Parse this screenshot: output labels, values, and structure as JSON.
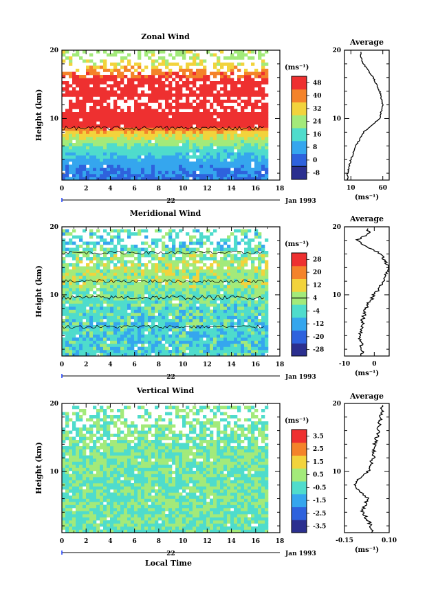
{
  "figure": {
    "xlabel_bottom": "Local Time",
    "date_label": "Jan 1993",
    "day_label": "22",
    "avg_xlabel": "(ms⁻¹)"
  },
  "chart_data": [
    {
      "type": "heatmap",
      "title": "Zonal Wind",
      "xlabel": "",
      "ylabel": "Height (km)",
      "xlim": [
        0,
        18
      ],
      "ylim": [
        1,
        20
      ],
      "xticks": [
        "0",
        "2",
        "4",
        "6",
        "8",
        "10",
        "12",
        "14",
        "16",
        "18"
      ],
      "yticks": [
        {
          "value": 10,
          "label": "10"
        },
        {
          "value": 20,
          "label": "20"
        }
      ],
      "date_label": "Jan 1993",
      "day_label": "22",
      "colorbar": {
        "unit": "(ms⁻¹)",
        "levels": [
          -8,
          0,
          8,
          16,
          24,
          32,
          40,
          48
        ],
        "tick_labels": [
          "48",
          "40",
          "32",
          "24",
          "16",
          "8",
          "0",
          "-8"
        ],
        "zero_contour": true
      },
      "approx_profile": {
        "heights_km": [
          2,
          4,
          6,
          8,
          10,
          12,
          14,
          16,
          18,
          19
        ],
        "values_ms": [
          5,
          10,
          18,
          30,
          55,
          60,
          55,
          45,
          30,
          25
        ]
      },
      "average": {
        "title": "Average",
        "xlim": [
          0,
          70
        ],
        "xticks": [
          "10",
          "60"
        ],
        "xlabel": "(ms⁻¹)"
      }
    },
    {
      "type": "heatmap",
      "title": "Meridional Wind",
      "xlabel": "",
      "ylabel": "Height (km)",
      "xlim": [
        0,
        18
      ],
      "ylim": [
        1,
        20
      ],
      "xticks": [
        "0",
        "2",
        "4",
        "6",
        "8",
        "10",
        "12",
        "14",
        "16",
        "18"
      ],
      "yticks": [
        {
          "value": 10,
          "label": "10"
        },
        {
          "value": 20,
          "label": "20"
        }
      ],
      "date_label": "Jan 1993",
      "day_label": "22",
      "colorbar": {
        "unit": "(ms⁻¹)",
        "levels": [
          -28,
          -20,
          -12,
          -4,
          4,
          12,
          20,
          28
        ],
        "tick_labels": [
          "28",
          "20",
          "12",
          "4",
          "-4",
          "-12",
          "-20",
          "-28"
        ],
        "zero_contour": true
      },
      "approx_profile": {
        "heights_km": [
          2,
          4,
          6,
          8,
          10,
          12,
          14,
          16,
          18,
          19
        ],
        "values_ms": [
          -4,
          -5,
          -4,
          -3,
          0,
          3,
          5,
          2,
          -6,
          -2
        ]
      },
      "average": {
        "title": "Average",
        "xlim": [
          -10,
          5
        ],
        "xticks": [
          "-10",
          "0"
        ],
        "xlabel": "(ms⁻¹)"
      }
    },
    {
      "type": "heatmap",
      "title": "Vertical Wind",
      "xlabel": "Local Time",
      "ylabel": "Height (km)",
      "xlim": [
        0,
        18
      ],
      "ylim": [
        1,
        20
      ],
      "xticks": [
        "0",
        "2",
        "4",
        "6",
        "8",
        "10",
        "12",
        "14",
        "16",
        "18"
      ],
      "yticks": [
        {
          "value": 10,
          "label": "10"
        },
        {
          "value": 20,
          "label": "20"
        }
      ],
      "date_label": "Jan 1993",
      "day_label": "22",
      "colorbar": {
        "unit": "(ms⁻¹)",
        "levels": [
          -3.5,
          -2.5,
          -1.5,
          -0.5,
          0.5,
          1.5,
          2.5,
          3.5
        ],
        "tick_labels": [
          "3.5",
          "2.5",
          "1.5",
          "0.5",
          "-0.5",
          "-1.5",
          "-2.5",
          "-3.5"
        ],
        "zero_contour": false
      },
      "approx_profile": {
        "heights_km": [
          2,
          4,
          6,
          8,
          10,
          12,
          14,
          16,
          18,
          19
        ],
        "values_ms": [
          0.0,
          -0.05,
          -0.02,
          -0.1,
          -0.02,
          0.01,
          0.02,
          0.04,
          0.05,
          0.06
        ]
      },
      "average": {
        "title": "Average",
        "xlim": [
          -0.15,
          0.1
        ],
        "xticks": [
          "-0.15",
          "0.10"
        ],
        "xlabel": "(ms⁻¹)"
      }
    }
  ]
}
